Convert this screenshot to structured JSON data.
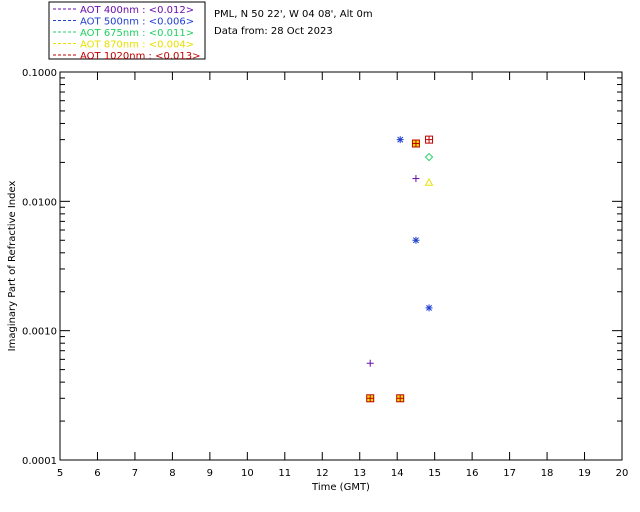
{
  "chart_data": {
    "type": "scatter",
    "title": "",
    "xlabel": "Time (GMT)",
    "ylabel": "Imaginary Part of Refractive Index",
    "xlim": [
      5,
      20
    ],
    "ylim": [
      0.0001,
      0.1
    ],
    "yscale": "log",
    "x_ticks": [
      "5",
      "6",
      "7",
      "8",
      "9",
      "10",
      "11",
      "12",
      "13",
      "14",
      "15",
      "16",
      "17",
      "18",
      "19",
      "20"
    ],
    "y_ticks": [
      {
        "value": 0.0001,
        "label": "0.0001"
      },
      {
        "value": 0.001,
        "label": "0.0010"
      },
      {
        "value": 0.01,
        "label": "0.0100"
      },
      {
        "value": 0.1,
        "label": "0.1000"
      }
    ],
    "legend": [
      {
        "label": "AOT  400nm : <0.012>",
        "color": "#6a0dad"
      },
      {
        "label": "AOT  500nm : <0.006>",
        "color": "#1f3fd1"
      },
      {
        "label": "AOT  675nm : <0.011>",
        "color": "#20d060"
      },
      {
        "label": "AOT  870nm : <0.004>",
        "color": "#e8e000"
      },
      {
        "label": "AOT 1020nm : <0.013>",
        "color": "#c00000"
      }
    ],
    "info": {
      "location": "PML, N 50 22', W 04 08', Alt 0m",
      "date": "Data from: 28 Oct 2023"
    },
    "series": [
      {
        "name": "400nm",
        "marker": "plus",
        "color": "#6a0dad",
        "points": [
          [
            13.28,
            0.00056
          ],
          [
            13.28,
            0.0003
          ],
          [
            14.08,
            0.0003
          ],
          [
            14.5,
            0.015
          ]
        ]
      },
      {
        "name": "500nm",
        "marker": "asterisk",
        "color": "#1f3fd1",
        "points": [
          [
            14.08,
            0.03
          ],
          [
            14.5,
            0.005
          ],
          [
            14.85,
            0.0015
          ]
        ]
      },
      {
        "name": "675nm",
        "marker": "diamond",
        "color": "#20d060",
        "points": [
          [
            14.85,
            0.022
          ]
        ]
      },
      {
        "name": "870nm",
        "marker": "square",
        "color": "#e8e000",
        "points": [
          [
            13.28,
            0.0003
          ],
          [
            14.08,
            0.0003
          ],
          [
            14.5,
            0.028
          ]
        ]
      },
      {
        "name": "870nm-tri",
        "marker": "triangle",
        "color": "#e8e000",
        "points": [
          [
            14.85,
            0.014
          ]
        ]
      },
      {
        "name": "1020nm",
        "marker": "square-x",
        "color": "#c00000",
        "points": [
          [
            13.28,
            0.0003
          ],
          [
            14.08,
            0.0003
          ],
          [
            14.5,
            0.028
          ],
          [
            14.85,
            0.03
          ]
        ]
      }
    ]
  }
}
